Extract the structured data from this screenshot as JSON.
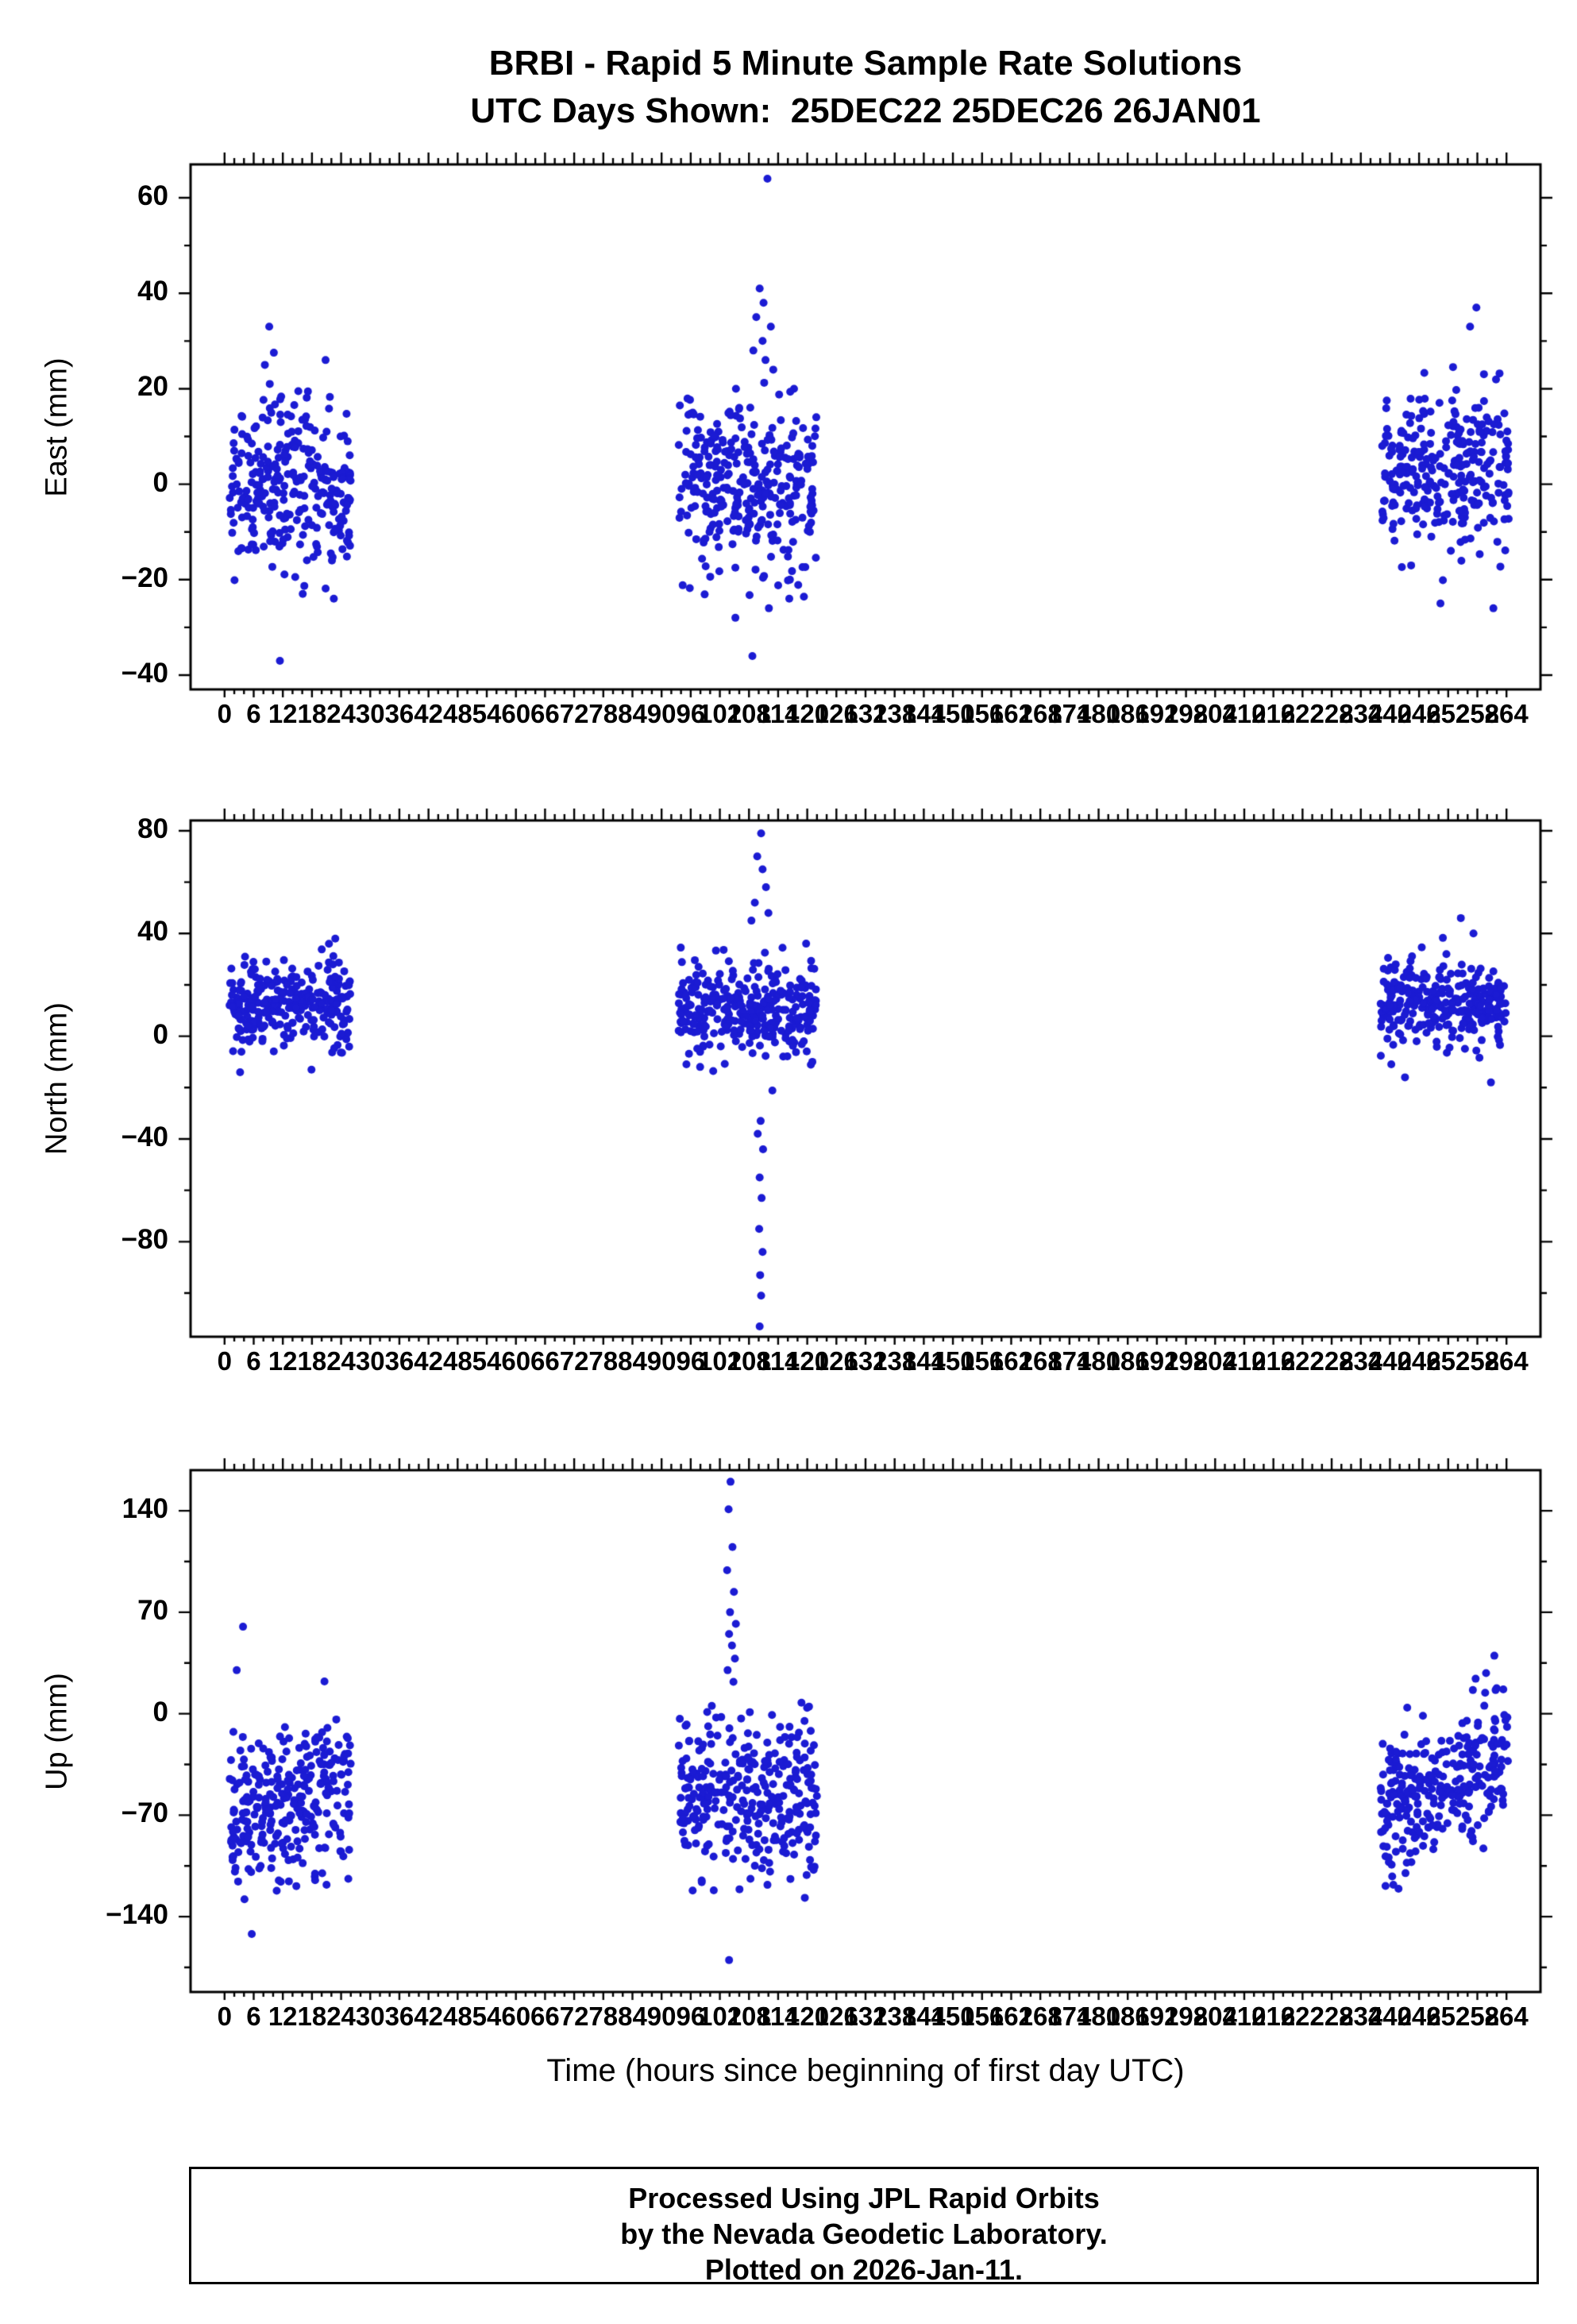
{
  "title": {
    "line1": "BRBI - Rapid 5 Minute Sample Rate Solutions",
    "line2": "UTC Days Shown:  25DEC22 25DEC26 26JAN01"
  },
  "xaxis_title": "Time (hours since beginning of first day UTC)",
  "footer": {
    "line1": "Processed Using JPL Rapid Orbits",
    "line2": "by the Nevada Geodetic Laboratory.",
    "line3": "Plotted on 2026-Jan-11."
  },
  "style": {
    "point_color": "#1b1bd3",
    "axis_color": "#000000",
    "background": "#ffffff",
    "point_radius": 5
  },
  "chart_data": {
    "type": "scatter",
    "title": "BRBI - Rapid 5 Minute Sample Rate Solutions",
    "subtitle": "UTC Days Shown:  25DEC22 25DEC26 26JAN01",
    "xlabel": "Time (hours since beginning of first day UTC)",
    "xlim": [
      -7,
      271
    ],
    "x_minor_step": 2,
    "x_major_step": 6,
    "xticks": [
      0,
      6,
      12,
      18,
      24,
      30,
      36,
      42,
      48,
      54,
      60,
      66,
      72,
      78,
      84,
      90,
      96,
      102,
      108,
      114,
      120,
      126,
      132,
      138,
      144,
      150,
      156,
      162,
      168,
      174,
      180,
      186,
      192,
      198,
      204,
      210,
      216,
      222,
      228,
      234,
      240,
      246,
      252,
      258,
      264
    ],
    "panels": [
      {
        "id": "east",
        "ylabel": "East (mm)",
        "ylim": [
          -43,
          67
        ],
        "yticks": [
          -40,
          -20,
          0,
          20,
          40,
          60
        ],
        "y_minor_step": 10,
        "seed": 11,
        "clusters": [
          {
            "x_range": [
              1,
              26
            ],
            "n": 288,
            "mean": 0,
            "std": 9,
            "trend": 0,
            "clip": [
              -30,
              28
            ],
            "outliers": [
              [
                9.2,
                33
              ],
              [
                8.3,
                25
              ],
              [
                20.8,
                26
              ],
              [
                11.4,
                -37
              ],
              [
                22.5,
                -24
              ],
              [
                16.1,
                -23
              ]
            ]
          },
          {
            "x_range": [
              93.5,
              122
            ],
            "n": 320,
            "mean": -1,
            "std": 9.5,
            "trend": 0,
            "clip": [
              -26,
              23
            ],
            "outliers": [
              [
                111.8,
                64
              ],
              [
                110.2,
                41
              ],
              [
                111,
                38
              ],
              [
                109.5,
                35
              ],
              [
                112.5,
                33
              ],
              [
                110.8,
                30
              ],
              [
                108.9,
                28
              ],
              [
                111.4,
                26
              ],
              [
                113,
                24
              ],
              [
                108.7,
                -36
              ],
              [
                105.2,
                -28
              ],
              [
                112.1,
                -26
              ],
              [
                116.3,
                -24
              ]
            ]
          },
          {
            "x_range": [
              238,
              264.5
            ],
            "n": 288,
            "mean": 2,
            "std": 8.5,
            "trend": 0,
            "clip": [
              -21,
              25
            ],
            "outliers": [
              [
                257.8,
                37
              ],
              [
                256.5,
                33
              ],
              [
                261.3,
                -26
              ],
              [
                250.4,
                -25
              ]
            ]
          }
        ]
      },
      {
        "id": "north",
        "ylabel": "North (mm)",
        "ylim": [
          -117,
          84
        ],
        "yticks": [
          -80,
          -40,
          0,
          40,
          80
        ],
        "y_minor_step": 20,
        "seed": 22,
        "clusters": [
          {
            "x_range": [
              1,
              26
            ],
            "n": 288,
            "mean": 12,
            "std": 8,
            "trend": 0,
            "clip": [
              -15,
              36
            ],
            "outliers": [
              [
                22.8,
                38
              ],
              [
                21.5,
                36
              ],
              [
                3.2,
                -14
              ],
              [
                17.9,
                -13
              ]
            ]
          },
          {
            "x_range": [
              93.5,
              122
            ],
            "n": 320,
            "mean": 10,
            "std": 9,
            "trend": 0,
            "clip": [
              -24,
              44
            ],
            "outliers": [
              [
                110.5,
                79
              ],
              [
                109.7,
                70
              ],
              [
                110.8,
                65
              ],
              [
                111.5,
                58
              ],
              [
                109.2,
                52
              ],
              [
                112,
                48
              ],
              [
                108.5,
                45
              ],
              [
                110.4,
                -33
              ],
              [
                109.8,
                -38
              ],
              [
                110.9,
                -44
              ],
              [
                110.2,
                -55
              ],
              [
                110.6,
                -63
              ],
              [
                110.1,
                -75
              ],
              [
                110.8,
                -84
              ],
              [
                110.3,
                -93
              ],
              [
                110.5,
                -101
              ],
              [
                110.2,
                -113
              ]
            ]
          },
          {
            "x_range": [
              238,
              264.5
            ],
            "n": 288,
            "mean": 13,
            "std": 8,
            "trend": 0,
            "clip": [
              -12,
              40
            ],
            "outliers": [
              [
                254.6,
                46
              ],
              [
                257.2,
                40
              ],
              [
                243.1,
                -16
              ],
              [
                260.8,
                -18
              ]
            ]
          }
        ]
      },
      {
        "id": "up",
        "ylabel": "Up (mm)",
        "ylim": [
          -192,
          168
        ],
        "yticks": [
          -140,
          -70,
          0,
          70,
          140
        ],
        "y_minor_step": 35,
        "seed": 33,
        "clusters": [
          {
            "x_range": [
              1,
              26
            ],
            "n": 288,
            "mean": -58,
            "std": 28,
            "trend": 0.8,
            "clip": [
              -132,
              30
            ],
            "outliers": [
              [
                3.8,
                60
              ],
              [
                2.5,
                30
              ],
              [
                5.6,
                -152
              ],
              [
                4.1,
                -128
              ],
              [
                21,
                -118
              ]
            ]
          },
          {
            "x_range": [
              93.5,
              122
            ],
            "n": 320,
            "mean": -55,
            "std": 28,
            "trend": 0,
            "clip": [
              -122,
              8
            ],
            "outliers": [
              [
                104.2,
                160
              ],
              [
                103.8,
                141
              ],
              [
                104.6,
                115
              ],
              [
                103.5,
                99
              ],
              [
                104.9,
                84
              ],
              [
                104.1,
                70
              ],
              [
                105.3,
                62
              ],
              [
                103.9,
                55
              ],
              [
                104.5,
                47
              ],
              [
                105.1,
                38
              ],
              [
                103.6,
                30
              ],
              [
                104.8,
                22
              ],
              [
                103.9,
                -170
              ],
              [
                119.5,
                -127
              ],
              [
                96.4,
                -122
              ]
            ]
          },
          {
            "x_range": [
              238,
              264.5
            ],
            "n": 288,
            "mean": -50,
            "std": 22,
            "trend": 1.5,
            "clip": [
              -122,
              30
            ],
            "outliers": [
              [
                261.5,
                40
              ],
              [
                259.8,
                28
              ],
              [
                240.7,
                -118
              ],
              [
                243.2,
                -110
              ]
            ]
          }
        ]
      }
    ]
  }
}
